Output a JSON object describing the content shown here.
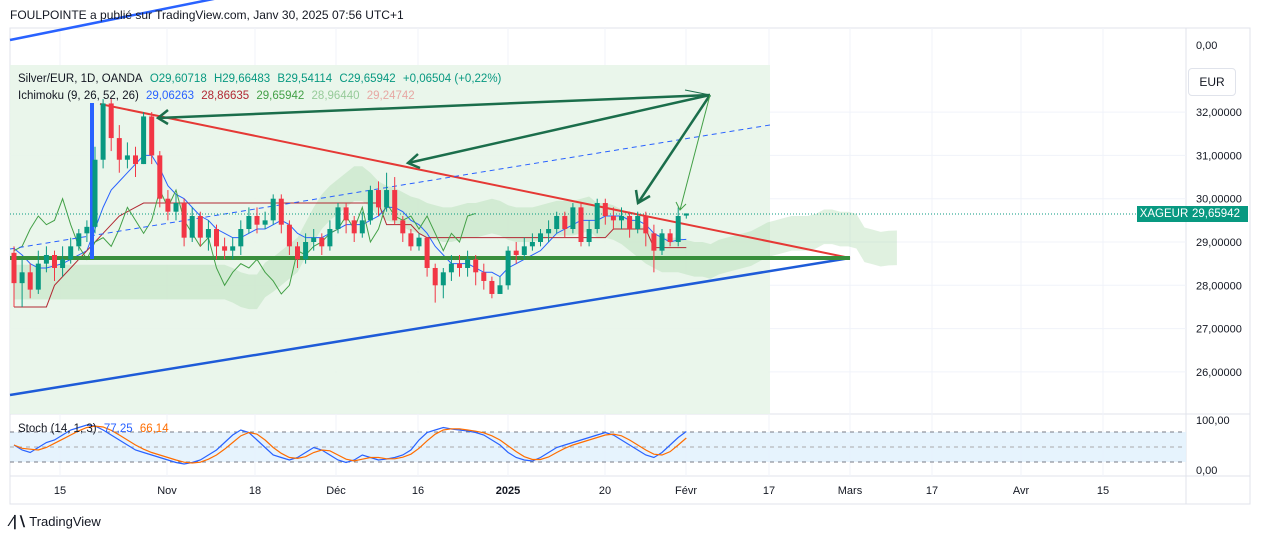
{
  "header": {
    "text": "FOULPOINTE a publié sur TradingView.com, Janv 30, 2025 07:56 UTC+1"
  },
  "legend_main": {
    "symbol": "Silver/EUR, 1D, OANDA",
    "open": "O29,60718",
    "high": "H29,66483",
    "low": "B29,54114",
    "close": "C29,65942",
    "change": "+0,06504 (+0,22%)"
  },
  "legend_ichimoku": {
    "name": "Ichimoku (9, 26, 52, 26)",
    "v1": "29,06263",
    "v2": "28,86635",
    "v3": "29,65942",
    "v4": "28,96440",
    "v5": "29,24742"
  },
  "legend_stoch": {
    "name": "Stoch (14, 1, 3)",
    "k": "77,25",
    "d": "66,14"
  },
  "currency": "EUR",
  "symbol_tag": "XAGEUR",
  "price_tag": "29,65942",
  "footer": {
    "brand": "TradingView"
  },
  "colors": {
    "up": "#089981",
    "down": "#f23645",
    "tenkan": "#2962ff",
    "kijun": "#b22833",
    "chikou": "#43a047",
    "cloud_up": "#a5d6a7",
    "cloud_down": "#f8bbd0",
    "support": "#388e3c",
    "resistance": "#e53935",
    "channel": "#2962ff",
    "stoch_k": "#2962ff",
    "stoch_d": "#ff6d00"
  },
  "chart_data": {
    "type": "candlestick",
    "y_ticks": [
      "0,00",
      "32,00000",
      "31,00000",
      "30,00000",
      "29,00000",
      "28,00000",
      "27,00000",
      "26,00000"
    ],
    "stoch_ticks": [
      "100,00",
      "0,00"
    ],
    "x_ticks": [
      "15",
      "Nov",
      "18",
      "Déc",
      "16",
      "2025",
      "20",
      "Févr",
      "17",
      "Mars",
      "17",
      "Avr",
      "15"
    ],
    "candles": [
      {
        "o": 28.75,
        "c": 28.05,
        "h": 28.9,
        "l": 27.5
      },
      {
        "o": 28.05,
        "c": 28.3,
        "h": 28.6,
        "l": 27.5
      },
      {
        "o": 28.3,
        "c": 27.9,
        "h": 28.5,
        "l": 27.7
      },
      {
        "o": 27.9,
        "c": 28.5,
        "h": 28.8,
        "l": 27.8
      },
      {
        "o": 28.5,
        "c": 28.7,
        "h": 28.9,
        "l": 28.3
      },
      {
        "o": 28.7,
        "c": 28.4,
        "h": 28.8,
        "l": 28.1
      },
      {
        "o": 28.4,
        "c": 28.6,
        "h": 28.9,
        "l": 28.2
      },
      {
        "o": 28.6,
        "c": 28.9,
        "h": 29.1,
        "l": 28.5
      },
      {
        "o": 28.9,
        "c": 29.2,
        "h": 29.3,
        "l": 28.8
      },
      {
        "o": 29.2,
        "c": 29.35,
        "h": 29.5,
        "l": 29.0
      },
      {
        "o": 29.35,
        "c": 30.9,
        "h": 31.2,
        "l": 29.2
      },
      {
        "o": 30.9,
        "c": 32.2,
        "h": 32.3,
        "l": 30.7
      },
      {
        "o": 32.2,
        "c": 31.4,
        "h": 32.3,
        "l": 31.1
      },
      {
        "o": 31.4,
        "c": 30.9,
        "h": 31.7,
        "l": 30.6
      },
      {
        "o": 30.9,
        "c": 31.0,
        "h": 31.3,
        "l": 30.7
      },
      {
        "o": 31.0,
        "c": 30.8,
        "h": 31.2,
        "l": 30.5
      },
      {
        "o": 30.8,
        "c": 31.9,
        "h": 32.0,
        "l": 30.8
      },
      {
        "o": 31.9,
        "c": 31.0,
        "h": 32.0,
        "l": 30.8
      },
      {
        "o": 31.0,
        "c": 30.0,
        "h": 31.1,
        "l": 29.8
      },
      {
        "o": 30.0,
        "c": 29.7,
        "h": 30.2,
        "l": 29.5
      },
      {
        "o": 29.7,
        "c": 29.9,
        "h": 30.1,
        "l": 29.5
      },
      {
        "o": 29.9,
        "c": 29.1,
        "h": 30.0,
        "l": 28.9
      },
      {
        "o": 29.1,
        "c": 29.6,
        "h": 29.8,
        "l": 29.0
      },
      {
        "o": 29.6,
        "c": 29.1,
        "h": 29.7,
        "l": 28.9
      },
      {
        "o": 29.1,
        "c": 29.3,
        "h": 29.5,
        "l": 28.8
      },
      {
        "o": 29.3,
        "c": 28.9,
        "h": 29.4,
        "l": 28.6
      },
      {
        "o": 28.9,
        "c": 28.8,
        "h": 29.1,
        "l": 28.6
      },
      {
        "o": 28.8,
        "c": 28.9,
        "h": 29.1,
        "l": 28.6
      },
      {
        "o": 28.9,
        "c": 29.3,
        "h": 29.5,
        "l": 28.7
      },
      {
        "o": 29.3,
        "c": 29.6,
        "h": 29.8,
        "l": 29.2
      },
      {
        "o": 29.6,
        "c": 29.4,
        "h": 29.8,
        "l": 29.2
      },
      {
        "o": 29.4,
        "c": 29.5,
        "h": 29.7,
        "l": 29.3
      },
      {
        "o": 29.5,
        "c": 30.0,
        "h": 30.1,
        "l": 29.4
      },
      {
        "o": 30.0,
        "c": 29.4,
        "h": 30.1,
        "l": 29.2
      },
      {
        "o": 29.4,
        "c": 28.9,
        "h": 29.5,
        "l": 28.7
      },
      {
        "o": 28.9,
        "c": 28.6,
        "h": 29.0,
        "l": 28.4
      },
      {
        "o": 28.6,
        "c": 29.0,
        "h": 29.2,
        "l": 28.5
      },
      {
        "o": 29.0,
        "c": 29.1,
        "h": 29.3,
        "l": 28.8
      },
      {
        "o": 29.1,
        "c": 28.9,
        "h": 29.2,
        "l": 28.7
      },
      {
        "o": 28.9,
        "c": 29.3,
        "h": 29.5,
        "l": 28.8
      },
      {
        "o": 29.3,
        "c": 29.8,
        "h": 29.9,
        "l": 29.2
      },
      {
        "o": 29.8,
        "c": 29.5,
        "h": 29.9,
        "l": 29.2
      },
      {
        "o": 29.5,
        "c": 29.2,
        "h": 29.6,
        "l": 29.0
      },
      {
        "o": 29.2,
        "c": 29.5,
        "h": 29.7,
        "l": 29.1
      },
      {
        "o": 29.5,
        "c": 30.2,
        "h": 30.3,
        "l": 29.4
      },
      {
        "o": 30.2,
        "c": 29.8,
        "h": 30.4,
        "l": 29.6
      },
      {
        "o": 29.8,
        "c": 30.2,
        "h": 30.6,
        "l": 29.7
      },
      {
        "o": 30.2,
        "c": 29.5,
        "h": 30.5,
        "l": 29.4
      },
      {
        "o": 29.5,
        "c": 29.2,
        "h": 29.6,
        "l": 29.0
      },
      {
        "o": 29.2,
        "c": 28.9,
        "h": 29.3,
        "l": 28.8
      },
      {
        "o": 28.9,
        "c": 29.1,
        "h": 29.2,
        "l": 28.8
      },
      {
        "o": 29.1,
        "c": 28.4,
        "h": 29.1,
        "l": 28.2
      },
      {
        "o": 28.4,
        "c": 28.0,
        "h": 28.5,
        "l": 27.6
      },
      {
        "o": 28.0,
        "c": 28.3,
        "h": 28.4,
        "l": 27.7
      },
      {
        "o": 28.3,
        "c": 28.5,
        "h": 28.7,
        "l": 28.1
      },
      {
        "o": 28.5,
        "c": 28.4,
        "h": 28.7,
        "l": 28.2
      },
      {
        "o": 28.4,
        "c": 28.6,
        "h": 28.8,
        "l": 28.2
      },
      {
        "o": 28.6,
        "c": 28.3,
        "h": 28.7,
        "l": 28.0
      },
      {
        "o": 28.3,
        "c": 28.1,
        "h": 28.5,
        "l": 27.9
      },
      {
        "o": 28.1,
        "c": 27.8,
        "h": 28.2,
        "l": 27.7
      },
      {
        "o": 27.8,
        "c": 28.0,
        "h": 28.2,
        "l": 27.8
      },
      {
        "o": 28.0,
        "c": 28.8,
        "h": 28.9,
        "l": 27.9
      },
      {
        "o": 28.8,
        "c": 28.7,
        "h": 29.0,
        "l": 28.5
      },
      {
        "o": 28.7,
        "c": 28.9,
        "h": 29.1,
        "l": 28.6
      },
      {
        "o": 28.9,
        "c": 29.0,
        "h": 29.2,
        "l": 28.8
      },
      {
        "o": 29.0,
        "c": 29.2,
        "h": 29.3,
        "l": 28.9
      },
      {
        "o": 29.2,
        "c": 29.3,
        "h": 29.5,
        "l": 29.0
      },
      {
        "o": 29.3,
        "c": 29.6,
        "h": 29.7,
        "l": 29.2
      },
      {
        "o": 29.6,
        "c": 29.3,
        "h": 29.7,
        "l": 29.1
      },
      {
        "o": 29.3,
        "c": 29.8,
        "h": 29.9,
        "l": 29.2
      },
      {
        "o": 29.8,
        "c": 29.0,
        "h": 29.9,
        "l": 28.9
      },
      {
        "o": 29.0,
        "c": 29.3,
        "h": 29.5,
        "l": 28.9
      },
      {
        "o": 29.3,
        "c": 29.9,
        "h": 30.0,
        "l": 29.2
      },
      {
        "o": 29.9,
        "c": 29.6,
        "h": 30.0,
        "l": 29.4
      },
      {
        "o": 29.6,
        "c": 29.5,
        "h": 29.8,
        "l": 29.3
      },
      {
        "o": 29.5,
        "c": 29.6,
        "h": 29.8,
        "l": 29.3
      },
      {
        "o": 29.6,
        "c": 29.3,
        "h": 29.7,
        "l": 29.1
      },
      {
        "o": 29.3,
        "c": 29.6,
        "h": 29.7,
        "l": 29.2
      },
      {
        "o": 29.6,
        "c": 29.2,
        "h": 29.7,
        "l": 28.9
      },
      {
        "o": 29.2,
        "c": 28.8,
        "h": 29.4,
        "l": 28.3
      },
      {
        "o": 28.8,
        "c": 29.2,
        "h": 29.3,
        "l": 28.7
      },
      {
        "o": 29.2,
        "c": 29.0,
        "h": 29.3,
        "l": 28.9
      },
      {
        "o": 29.0,
        "c": 29.6,
        "h": 29.8,
        "l": 28.9
      },
      {
        "o": 29.61,
        "c": 29.66,
        "h": 29.66,
        "l": 29.54
      }
    ],
    "tenkan": [
      28.85,
      28.7,
      28.5,
      28.4,
      28.4,
      28.45,
      28.5,
      28.6,
      28.7,
      28.8,
      29.3,
      29.8,
      30.2,
      30.4,
      30.6,
      30.8,
      31.0,
      31.0,
      30.7,
      30.3,
      30.1,
      30.0,
      29.8,
      29.6,
      29.5,
      29.3,
      29.2,
      29.1,
      29.1,
      29.2,
      29.3,
      29.3,
      29.4,
      29.5,
      29.4,
      29.2,
      29.1,
      29.1,
      29.1,
      29.2,
      29.3,
      29.4,
      29.4,
      29.4,
      29.5,
      29.6,
      29.8,
      29.8,
      29.7,
      29.5,
      29.4,
      29.2,
      28.9,
      28.7,
      28.5,
      28.5,
      28.5,
      28.4,
      28.3,
      28.3,
      28.2,
      28.4,
      28.5,
      28.6,
      28.7,
      28.8,
      29.0,
      29.2,
      29.3,
      29.4,
      29.5,
      29.5,
      29.5,
      29.6,
      29.6,
      29.6,
      29.5,
      29.5,
      29.4,
      29.2,
      29.1,
      29.0,
      29.05,
      29.06
    ],
    "kijun": [
      27.5,
      27.5,
      27.5,
      27.5,
      27.5,
      28.0,
      28.2,
      28.4,
      28.6,
      28.8,
      29.0,
      29.2,
      29.4,
      29.6,
      29.7,
      29.8,
      29.9,
      29.9,
      29.9,
      29.9,
      29.9,
      29.9,
      29.9,
      29.9,
      29.9,
      29.9,
      29.9,
      29.9,
      29.9,
      29.9,
      29.9,
      29.9,
      29.9,
      29.9,
      29.9,
      29.9,
      29.9,
      29.9,
      29.9,
      29.9,
      29.9,
      29.9,
      29.9,
      29.9,
      29.9,
      29.9,
      29.4,
      29.4,
      29.4,
      29.4,
      29.2,
      29.1,
      29.1,
      29.1,
      29.1,
      29.1,
      29.1,
      29.1,
      29.1,
      29.1,
      29.1,
      29.1,
      29.1,
      29.1,
      29.1,
      29.1,
      29.1,
      29.1,
      29.1,
      29.1,
      29.1,
      29.1,
      29.1,
      29.1,
      29.3,
      29.3,
      29.3,
      29.3,
      29.3,
      28.87,
      28.87,
      28.87,
      28.87,
      28.87
    ],
    "stoch_k": [
      50,
      40,
      35,
      45,
      55,
      60,
      70,
      80,
      85,
      90,
      88,
      80,
      70,
      60,
      50,
      40,
      35,
      30,
      25,
      20,
      15,
      12,
      15,
      20,
      30,
      40,
      55,
      70,
      80,
      75,
      60,
      45,
      30,
      25,
      20,
      25,
      35,
      45,
      40,
      30,
      20,
      15,
      20,
      30,
      25,
      20,
      22,
      25,
      30,
      40,
      60,
      75,
      80,
      85,
      82,
      80,
      78,
      75,
      70,
      60,
      50,
      35,
      25,
      20,
      18,
      25,
      35,
      45,
      50,
      55,
      60,
      65,
      70,
      75,
      70,
      60,
      50,
      40,
      30,
      25,
      35,
      50,
      65,
      77
    ]
  }
}
